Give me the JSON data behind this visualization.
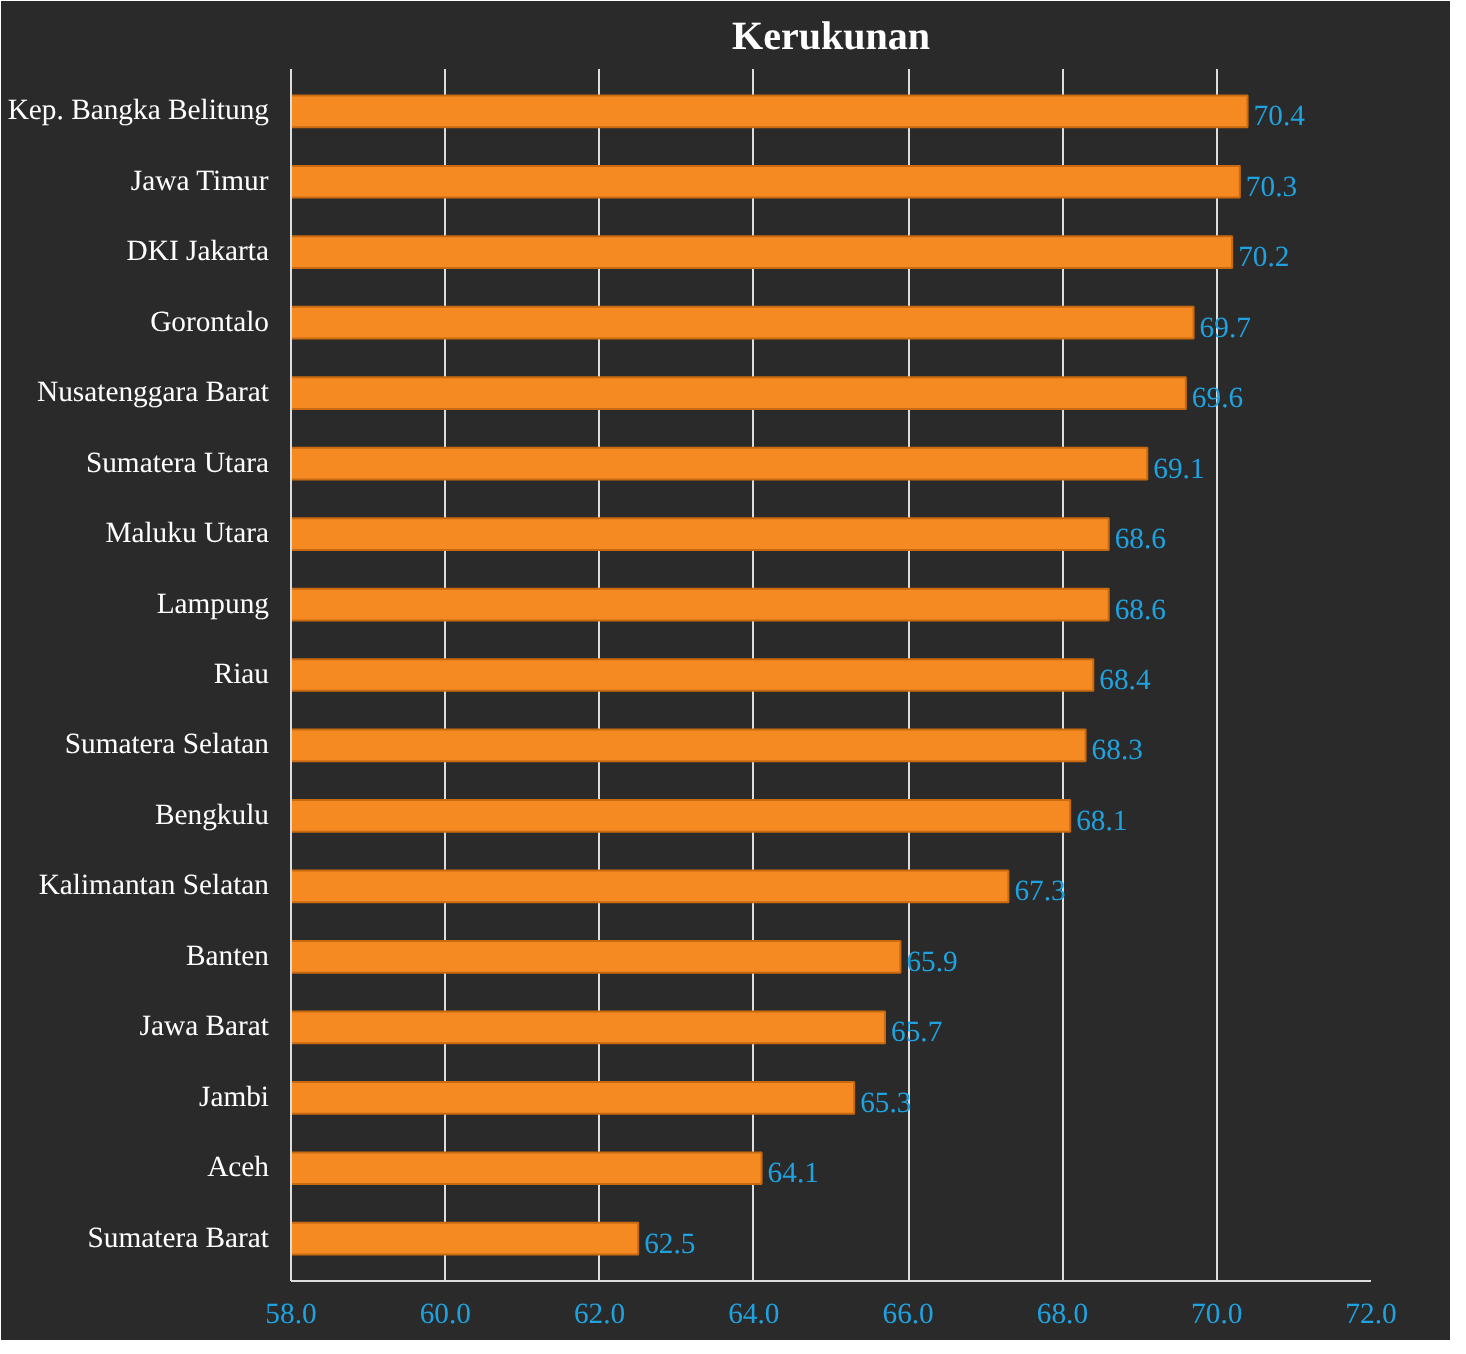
{
  "chart_data": {
    "type": "bar",
    "orientation": "horizontal",
    "title": "Kerukunan",
    "categories": [
      "Kep. Bangka Belitung",
      "Jawa Timur",
      "DKI Jakarta",
      "Gorontalo",
      "Nusatenggara Barat",
      "Sumatera Utara",
      "Maluku Utara",
      "Lampung",
      "Riau",
      "Sumatera Selatan",
      "Bengkulu",
      "Kalimantan Selatan",
      "Banten",
      "Jawa Barat",
      "Jambi",
      "Aceh",
      "Sumatera Barat"
    ],
    "values": [
      70.4,
      70.3,
      70.2,
      69.7,
      69.6,
      69.1,
      68.6,
      68.6,
      68.4,
      68.3,
      68.1,
      67.3,
      65.9,
      65.7,
      65.3,
      64.1,
      62.5
    ],
    "color": "#f58a22",
    "xlim": [
      58,
      72
    ],
    "xticks": [
      {
        "value": 58,
        "label": "58.0"
      },
      {
        "value": 60,
        "label": "60.0"
      },
      {
        "value": 62,
        "label": "62.0"
      },
      {
        "value": 64,
        "label": "64.0"
      },
      {
        "value": 66,
        "label": "66.0"
      },
      {
        "value": 68,
        "label": "68.0"
      },
      {
        "value": 70,
        "label": "70.0"
      },
      {
        "value": 72,
        "label": "72.0"
      }
    ],
    "grid": "x",
    "data_labels": true
  }
}
